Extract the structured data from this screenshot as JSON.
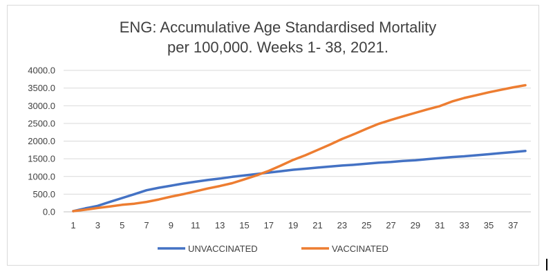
{
  "chart_data": {
    "type": "line",
    "title_lines": [
      "ENG: Accumulative Age Standardised Mortality",
      "per 100,000. Weeks 1- 38, 2021."
    ],
    "xlabel": "",
    "ylabel": "",
    "ylim": [
      0,
      4000
    ],
    "y_ticks": [
      "0.0",
      "500.0",
      "1000.0",
      "1500.0",
      "2000.0",
      "2500.0",
      "3000.0",
      "3500.0",
      "4000.0"
    ],
    "y_tick_values": [
      0,
      500,
      1000,
      1500,
      2000,
      2500,
      3000,
      3500,
      4000
    ],
    "x": [
      1,
      2,
      3,
      4,
      5,
      6,
      7,
      8,
      9,
      10,
      11,
      12,
      13,
      14,
      15,
      16,
      17,
      18,
      19,
      20,
      21,
      22,
      23,
      24,
      25,
      26,
      27,
      28,
      29,
      30,
      31,
      32,
      33,
      34,
      35,
      36,
      37,
      38
    ],
    "x_tick_labels": [
      "1",
      "3",
      "5",
      "7",
      "9",
      "11",
      "13",
      "15",
      "17",
      "19",
      "21",
      "23",
      "25",
      "27",
      "29",
      "31",
      "33",
      "35",
      "37"
    ],
    "x_tick_values": [
      1,
      3,
      5,
      7,
      9,
      11,
      13,
      15,
      17,
      19,
      21,
      23,
      25,
      27,
      29,
      31,
      33,
      35,
      37
    ],
    "grid": true,
    "legend_position": "bottom",
    "series": [
      {
        "name": "UNVACCINATED",
        "color": "#4472c4",
        "values": [
          20,
          100,
          170,
          280,
          390,
          500,
          610,
          680,
          740,
          800,
          850,
          900,
          940,
          990,
          1030,
          1070,
          1110,
          1150,
          1190,
          1220,
          1250,
          1280,
          1310,
          1330,
          1360,
          1390,
          1410,
          1440,
          1460,
          1490,
          1520,
          1550,
          1570,
          1600,
          1630,
          1660,
          1690,
          1720
        ]
      },
      {
        "name": "VACCINATED",
        "color": "#ed7d31",
        "values": [
          20,
          60,
          110,
          150,
          200,
          230,
          280,
          350,
          430,
          500,
          580,
          660,
          730,
          810,
          920,
          1030,
          1160,
          1310,
          1470,
          1600,
          1750,
          1900,
          2060,
          2200,
          2350,
          2490,
          2600,
          2700,
          2800,
          2900,
          2990,
          3120,
          3220,
          3300,
          3380,
          3450,
          3520,
          3580
        ]
      }
    ]
  }
}
